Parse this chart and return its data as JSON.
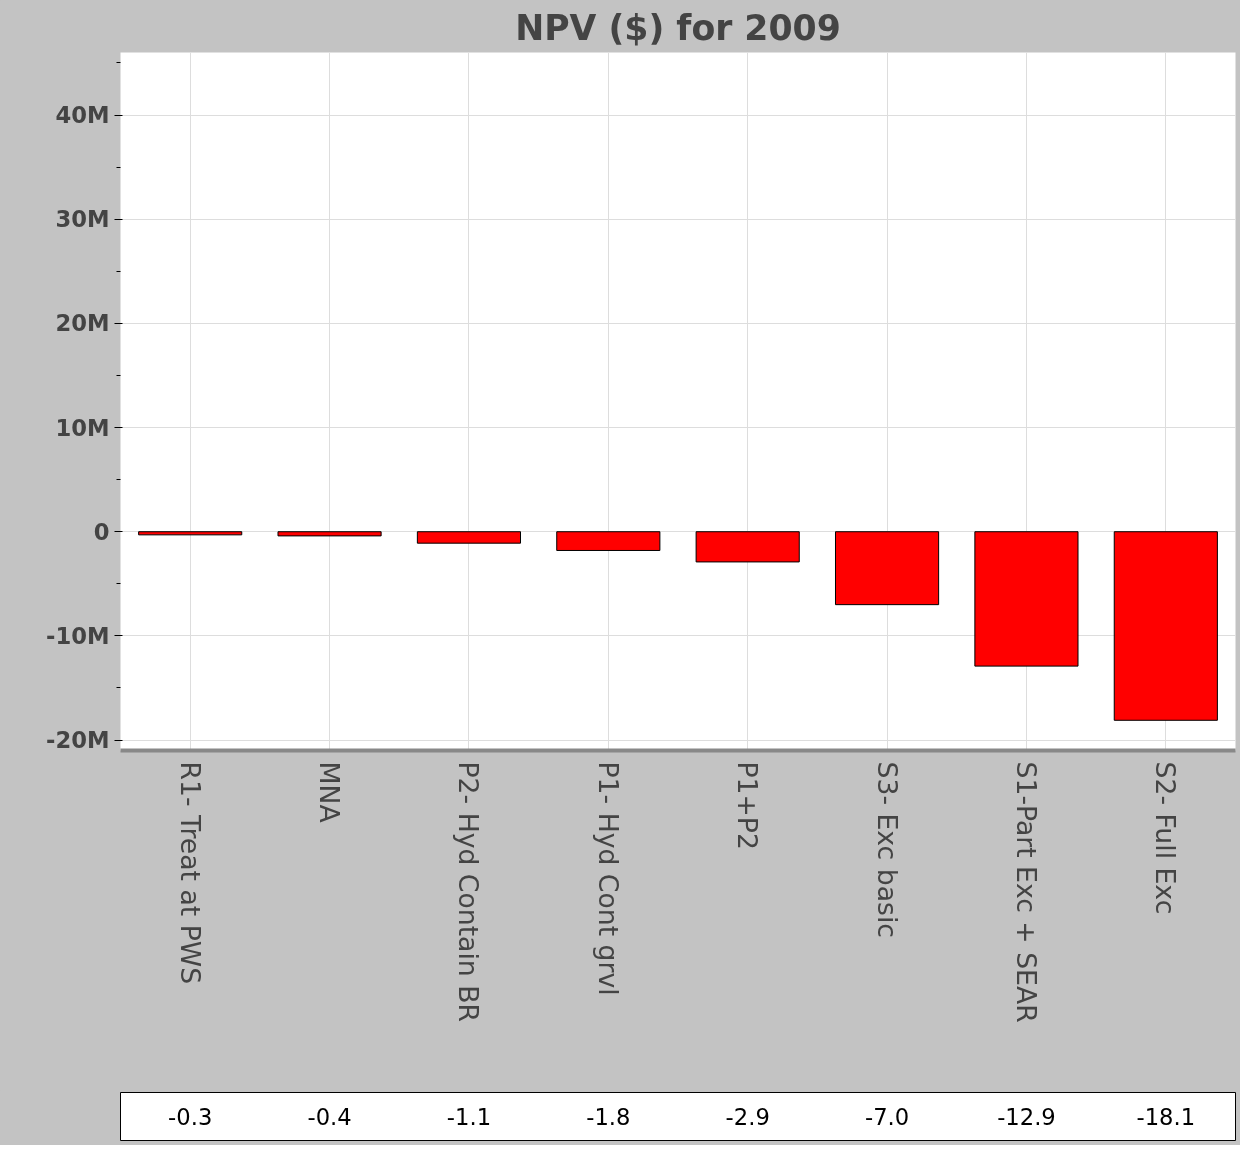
{
  "chart_data": {
    "type": "bar",
    "title": "NPV ($) for 2009",
    "categories": [
      "R1- Treat at PWS",
      "MNA",
      "P2- Hyd Contain BR",
      "P1- Hyd Cont grvl",
      "P1+P2",
      "S3- Exc basic",
      "S1-Part Exc + SEAR",
      "S2- Full Exc"
    ],
    "values": [
      -0.3,
      -0.4,
      -1.1,
      -1.8,
      -2.9,
      -7.0,
      -12.9,
      -18.1
    ],
    "value_labels": [
      "-0.3",
      "-0.4",
      "-1.1",
      "-1.8",
      "-2.9",
      "-7.0",
      "-12.9",
      "-18.1"
    ],
    "color": "#ff0000",
    "ylim": [
      -21,
      46
    ],
    "yticks": [
      {
        "value": -20,
        "label": "-20M"
      },
      {
        "value": -10,
        "label": "-10M"
      },
      {
        "value": 0,
        "label": "0"
      },
      {
        "value": 10,
        "label": "10M"
      },
      {
        "value": 20,
        "label": "20M"
      },
      {
        "value": 30,
        "label": "30M"
      },
      {
        "value": 40,
        "label": "40M"
      }
    ],
    "grid": true
  }
}
